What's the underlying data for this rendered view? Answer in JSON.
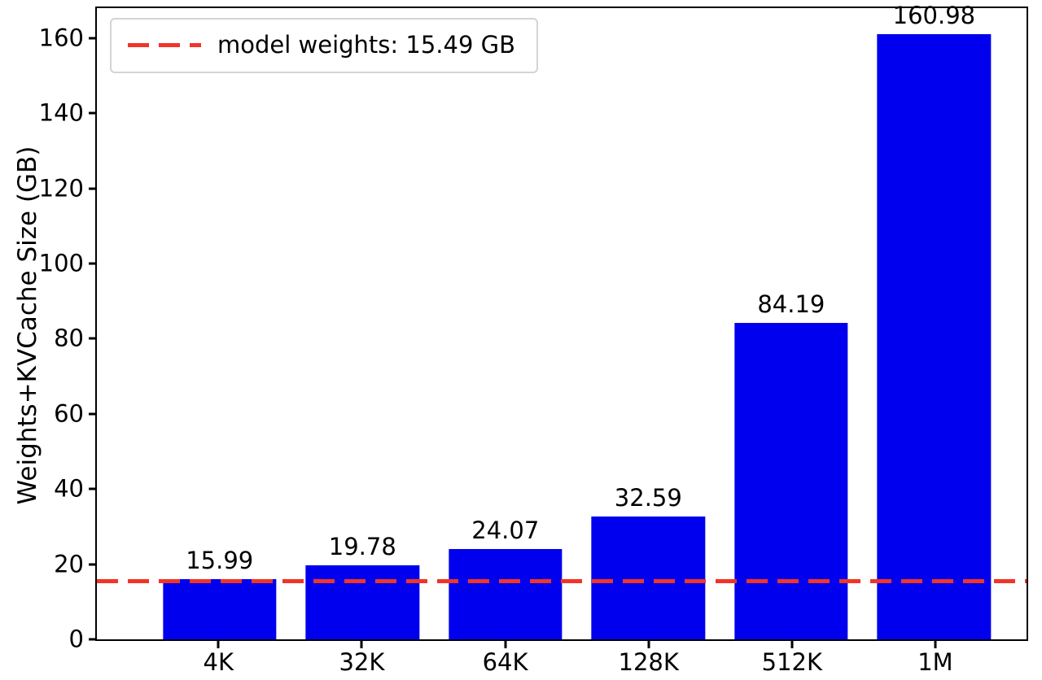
{
  "chart_data": {
    "type": "bar",
    "title": "",
    "xlabel": "",
    "ylabel": "Weights+KVCache Size (GB)",
    "categories": [
      "4K",
      "32K",
      "64K",
      "128K",
      "512K",
      "1M"
    ],
    "values": [
      15.99,
      19.78,
      24.07,
      32.59,
      84.19,
      160.98
    ],
    "bar_labels": [
      "15.99",
      "19.78",
      "24.07",
      "32.59",
      "84.19",
      "160.98"
    ],
    "bar_color": "#0000ee",
    "ylim": [
      0,
      168
    ],
    "yticks": [
      0,
      20,
      40,
      60,
      80,
      100,
      120,
      140,
      160
    ],
    "grid": false,
    "legend_position": "upper left",
    "reference_line": {
      "value": 15.49,
      "label": "model weights: 15.49 GB",
      "color": "#f03528",
      "style": "dashed"
    }
  }
}
